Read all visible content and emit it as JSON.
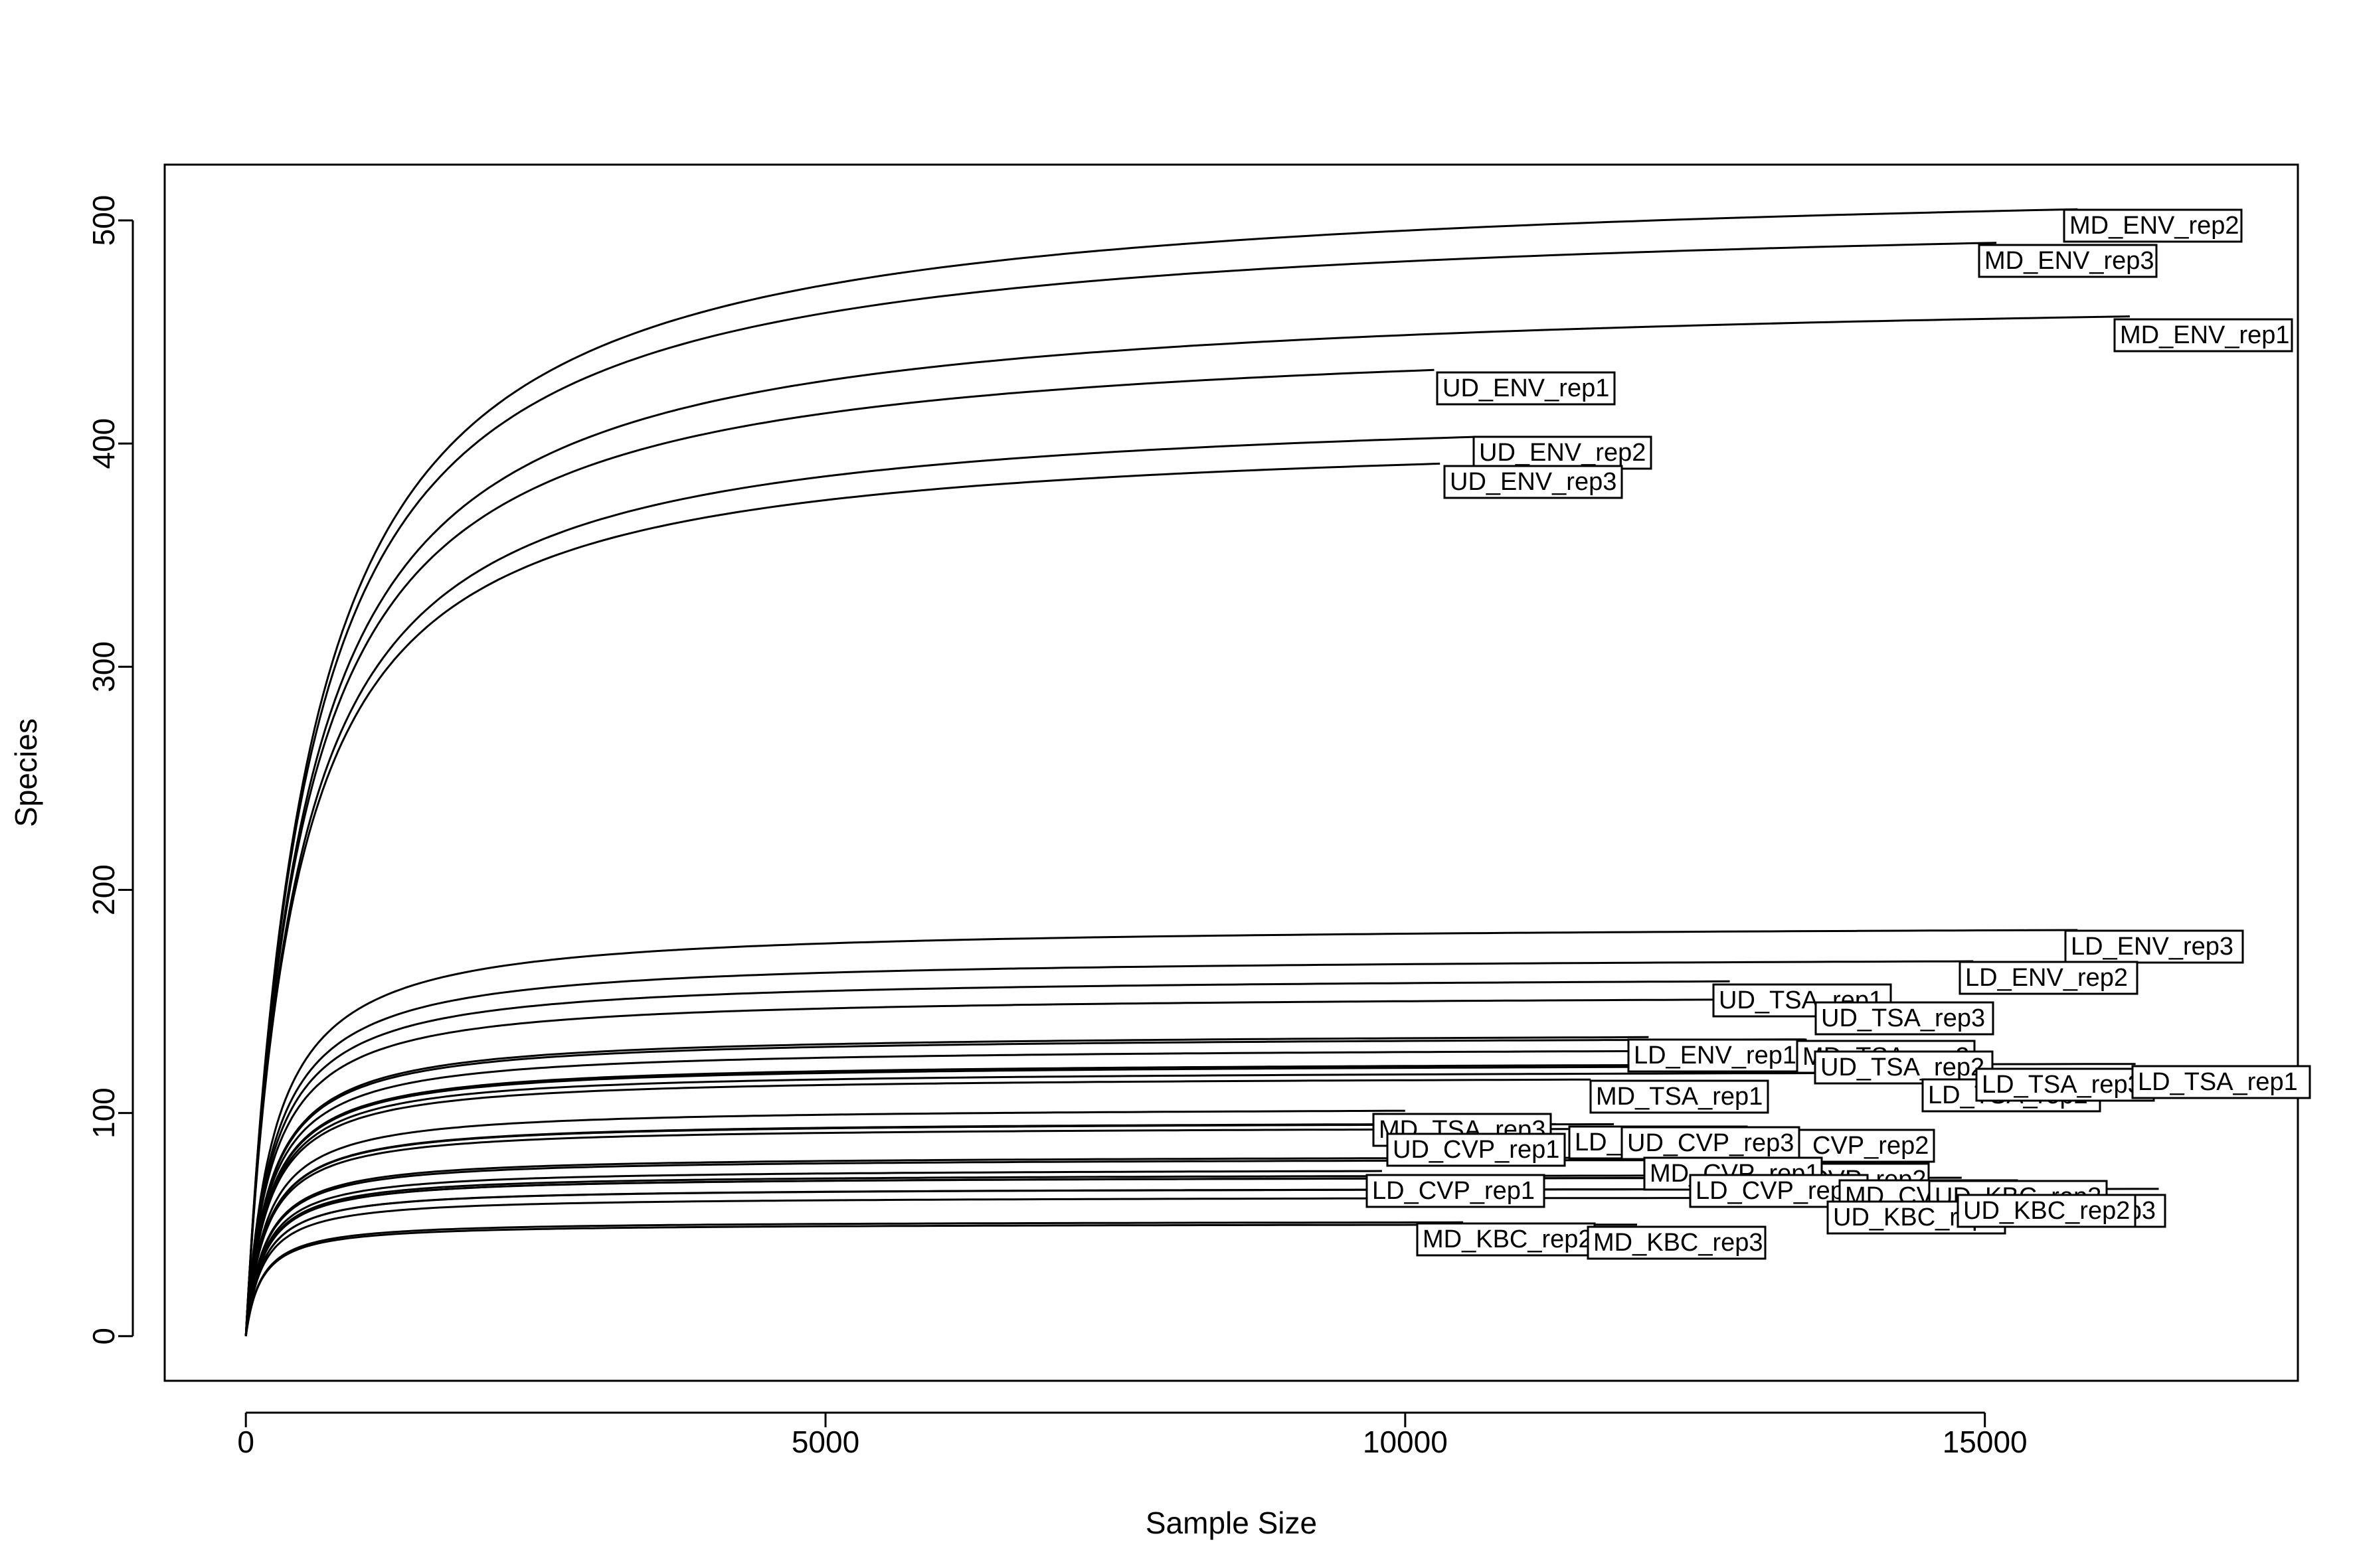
{
  "chart_data": {
    "type": "line",
    "title": "",
    "xlabel": "Sample Size",
    "ylabel": "Species",
    "xlim": [
      -700,
      17700
    ],
    "ylim": [
      -20,
      525
    ],
    "xticks": [
      0,
      5000,
      10000,
      15000
    ],
    "yticks": [
      0,
      100,
      200,
      300,
      400,
      500
    ],
    "grid": false,
    "legend": "none",
    "series": [
      {
        "name": "MD_ENV_rep2",
        "max_x": 15800,
        "max_y": 505
      },
      {
        "name": "MD_ENV_rep3",
        "max_x": 15100,
        "max_y": 490
      },
      {
        "name": "MD_ENV_rep1",
        "max_x": 16250,
        "max_y": 457
      },
      {
        "name": "UD_ENV_rep1",
        "max_x": 10250,
        "max_y": 433
      },
      {
        "name": "UD_ENV_rep2",
        "max_x": 10600,
        "max_y": 403
      },
      {
        "name": "UD_ENV_rep3",
        "max_x": 10300,
        "max_y": 391
      },
      {
        "name": "LD_ENV_rep3",
        "max_x": 15800,
        "max_y": 182
      },
      {
        "name": "LD_ENV_rep2",
        "max_x": 14900,
        "max_y": 168
      },
      {
        "name": "UD_TSA_rep1",
        "max_x": 12800,
        "max_y": 159
      },
      {
        "name": "UD_TSA_rep3",
        "max_x": 13700,
        "max_y": 151
      },
      {
        "name": "LD_ENV_rep1",
        "max_x": 12100,
        "max_y": 134
      },
      {
        "name": "MD_TSA_rep2",
        "max_x": 13450,
        "max_y": 133
      },
      {
        "name": "UD_TSA_rep2",
        "max_x": 13700,
        "max_y": 128
      },
      {
        "name": "LD_TSA_rep3",
        "max_x": 14800,
        "max_y": 121
      },
      {
        "name": "LD_TSA_rep1",
        "max_x": 16300,
        "max_y": 122
      },
      {
        "name": "LD_TSA_rep2",
        "max_x": 14600,
        "max_y": 118
      },
      {
        "name": "MD_TSA_rep1",
        "max_x": 11600,
        "max_y": 115
      },
      {
        "name": "MD_TSA_rep3",
        "max_x": 10000,
        "max_y": 101
      },
      {
        "name": "UD_CVP_rep1",
        "max_x": 10000,
        "max_y": 95
      },
      {
        "name": "UD_CVP_rep2",
        "max_x": 11300,
        "max_y": 95
      },
      {
        "name": "UD_CVP_rep3",
        "max_x": 11800,
        "max_y": 95
      },
      {
        "name": "LD_CVP_rep2",
        "max_x": 12900,
        "max_y": 93
      },
      {
        "name": "MD_CVP_rep1",
        "max_x": 12300,
        "max_y": 80
      },
      {
        "name": "MD_CVP_rep2",
        "max_x": 13800,
        "max_y": 79
      },
      {
        "name": "LD_CVP_rep1",
        "max_x": 9800,
        "max_y": 74
      },
      {
        "name": "LD_CVP_rep3",
        "max_x": 12700,
        "max_y": 72
      },
      {
        "name": "MD_CVP_rep3",
        "max_x": 13900,
        "max_y": 71
      },
      {
        "name": "UD_KBC_rep3",
        "max_x": 14800,
        "max_y": 71
      },
      {
        "name": "LD_KBC_rep3",
        "max_x": 16500,
        "max_y": 66
      },
      {
        "name": "UD_KBC_rep2",
        "max_x": 15300,
        "max_y": 66
      },
      {
        "name": "UD_KBC_rep1",
        "max_x": 13700,
        "max_y": 62
      },
      {
        "name": "MD_KBC_rep2",
        "max_x": 10500,
        "max_y": 51
      },
      {
        "name": "MD_KBC_rep3",
        "max_x": 12000,
        "max_y": 50
      }
    ],
    "labels": [
      {
        "text": "MD_ENV_rep2"
      },
      {
        "text": "MD_ENV_rep3"
      },
      {
        "text": "MD_ENV_rep1"
      },
      {
        "text": "UD_ENV_rep1"
      },
      {
        "text": "UD_ENV_rep2"
      },
      {
        "text": "UD_ENV_rep3"
      },
      {
        "text": "LD_ENV_rep3"
      },
      {
        "text": "LD_ENV_rep2"
      },
      {
        "text": "UD_TSA_rep1"
      },
      {
        "text": "UD_TSA_rep3"
      },
      {
        "text": "LD_ENV_rep1"
      },
      {
        "text": "MD_TSA_rep2"
      },
      {
        "text": "UD_TSA_rep2"
      },
      {
        "text": "LD_TSA_rep2"
      },
      {
        "text": "LD_TSA_rep3"
      },
      {
        "text": "LD_TSA_rep1"
      },
      {
        "text": "MD_TSA_rep1"
      },
      {
        "text": "MD_TSA_rep3"
      },
      {
        "text": "UD_CVP_rep1"
      },
      {
        "text": "UD_CVP_rep2"
      },
      {
        "text": "LD_CVP_rep2"
      },
      {
        "text": "UD_CVP_rep3"
      },
      {
        "text": "MD_CVP_rep2"
      },
      {
        "text": "MD_CVP_rep1"
      },
      {
        "text": "LD_CVP_rep1"
      },
      {
        "text": "LD_CVP_rep3"
      },
      {
        "text": "MD_CVP_rep3"
      },
      {
        "text": "LD_KBC_rep3"
      },
      {
        "text": "UD_KBC_rep3"
      },
      {
        "text": "UD_KBC_rep1"
      },
      {
        "text": "UD_KBC_rep2"
      },
      {
        "text": "MD_KBC_rep2"
      },
      {
        "text": "MD_KBC_rep3"
      }
    ]
  }
}
